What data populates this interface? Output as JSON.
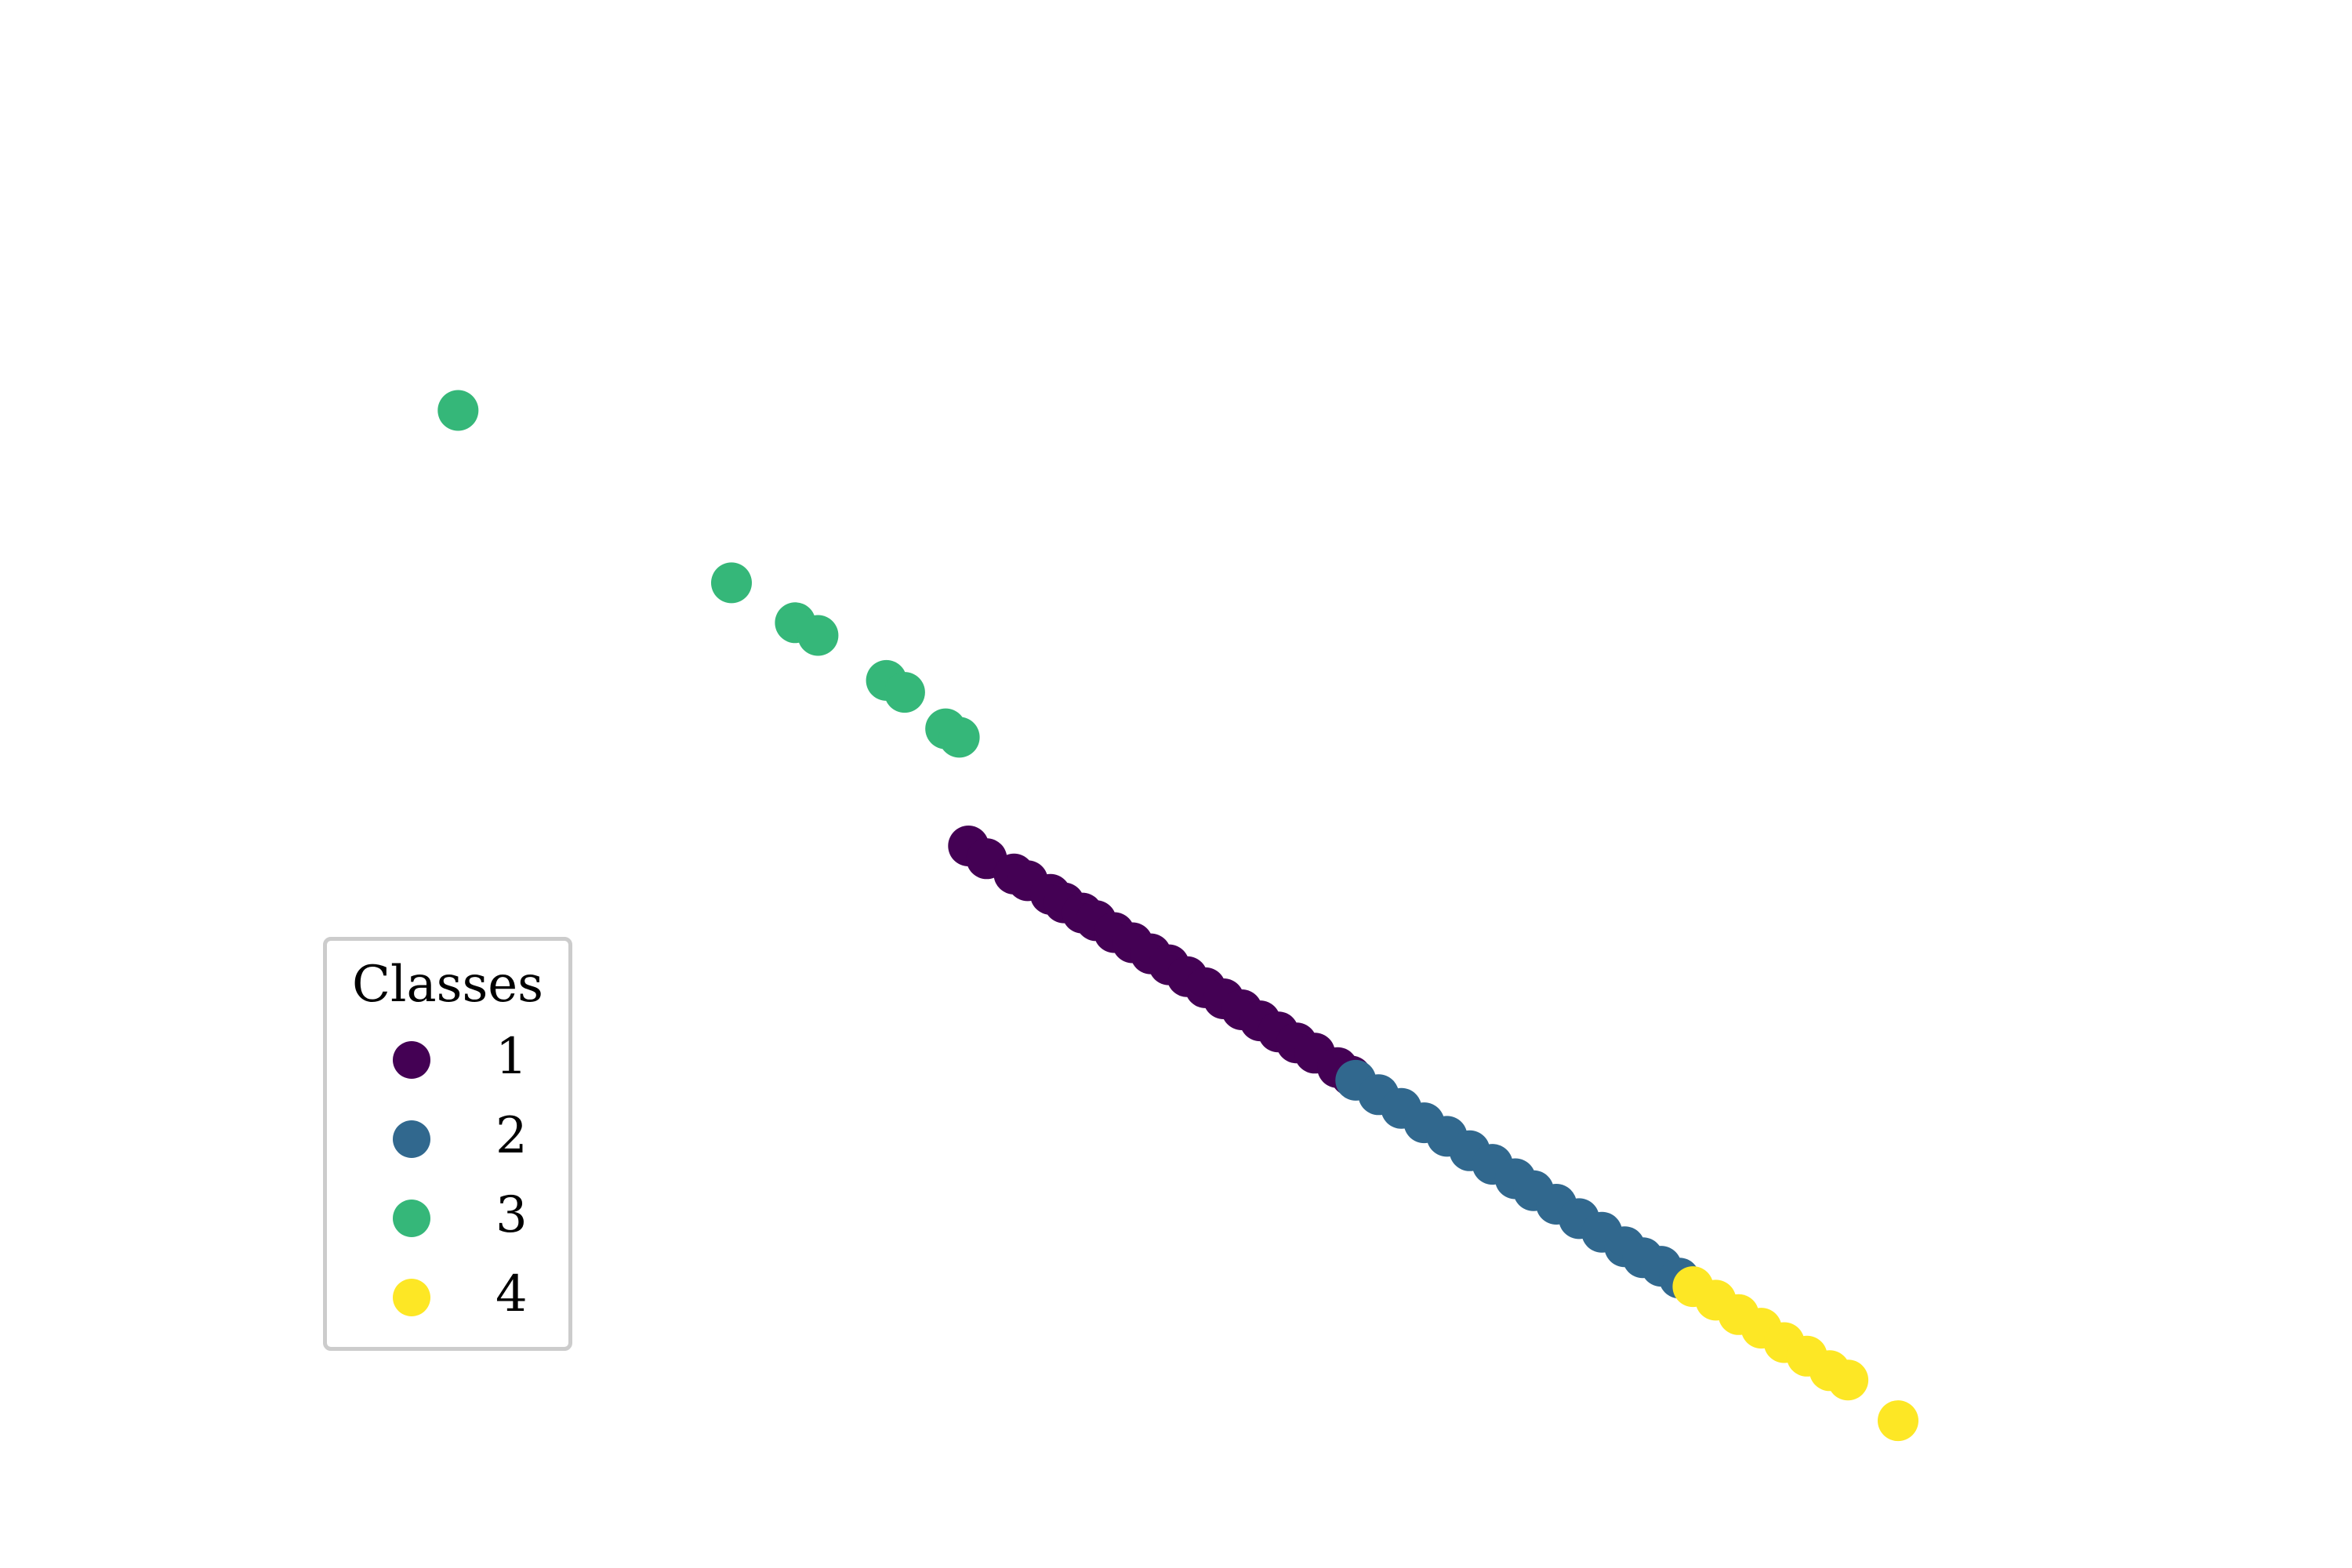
{
  "chart_data": {
    "type": "scatter",
    "title": "",
    "xlabel": "",
    "ylabel": "",
    "axes_visible": false,
    "grid": false,
    "xlim": [
      -10,
      10
    ],
    "ylim": [
      -7,
      7
    ],
    "legend": {
      "title": "Classes",
      "placement": "lower-left"
    },
    "series": [
      {
        "name": "1",
        "color": "#440154",
        "points": [
          [
            -2.6,
            -0.73
          ],
          [
            -2.4,
            -0.88
          ],
          [
            -2.1,
            -1.06
          ],
          [
            -1.95,
            -1.14
          ],
          [
            -1.7,
            -1.3
          ],
          [
            -1.55,
            -1.4
          ],
          [
            -1.35,
            -1.52
          ],
          [
            -1.2,
            -1.61
          ],
          [
            -1.0,
            -1.75
          ],
          [
            -0.8,
            -1.87
          ],
          [
            -0.6,
            -2.0
          ],
          [
            -0.4,
            -2.13
          ],
          [
            -0.2,
            -2.27
          ],
          [
            0.0,
            -2.4
          ],
          [
            0.2,
            -2.53
          ],
          [
            0.4,
            -2.66
          ],
          [
            0.6,
            -2.79
          ],
          [
            0.8,
            -2.92
          ],
          [
            1.0,
            -3.05
          ],
          [
            1.2,
            -3.17
          ],
          [
            1.45,
            -3.34
          ],
          [
            1.6,
            -3.44
          ]
        ]
      },
      {
        "name": "2",
        "color": "#31688e",
        "points": [
          [
            1.65,
            -3.49
          ],
          [
            1.9,
            -3.66
          ],
          [
            2.15,
            -3.82
          ],
          [
            2.4,
            -3.99
          ],
          [
            2.65,
            -4.15
          ],
          [
            2.9,
            -4.32
          ],
          [
            3.15,
            -4.48
          ],
          [
            3.4,
            -4.65
          ],
          [
            3.6,
            -4.79
          ],
          [
            3.85,
            -4.95
          ],
          [
            4.1,
            -5.12
          ],
          [
            4.35,
            -5.28
          ],
          [
            4.6,
            -5.45
          ],
          [
            4.8,
            -5.58
          ],
          [
            5.0,
            -5.68
          ],
          [
            5.2,
            -5.82
          ]
        ]
      },
      {
        "name": "3",
        "color": "#35b779",
        "points": [
          [
            -8.2,
            4.4
          ],
          [
            -5.2,
            2.37
          ],
          [
            -4.5,
            1.9
          ],
          [
            -4.25,
            1.75
          ],
          [
            -3.5,
            1.22
          ],
          [
            -3.3,
            1.08
          ],
          [
            -2.85,
            0.65
          ],
          [
            -2.7,
            0.55
          ]
        ]
      },
      {
        "name": "4",
        "color": "#fde725",
        "points": [
          [
            5.35,
            -5.92
          ],
          [
            5.6,
            -6.08
          ],
          [
            5.85,
            -6.25
          ],
          [
            6.1,
            -6.41
          ],
          [
            6.35,
            -6.58
          ],
          [
            6.6,
            -6.74
          ],
          [
            6.85,
            -6.91
          ],
          [
            7.05,
            -7.02
          ],
          [
            7.6,
            -7.5
          ]
        ]
      }
    ]
  }
}
